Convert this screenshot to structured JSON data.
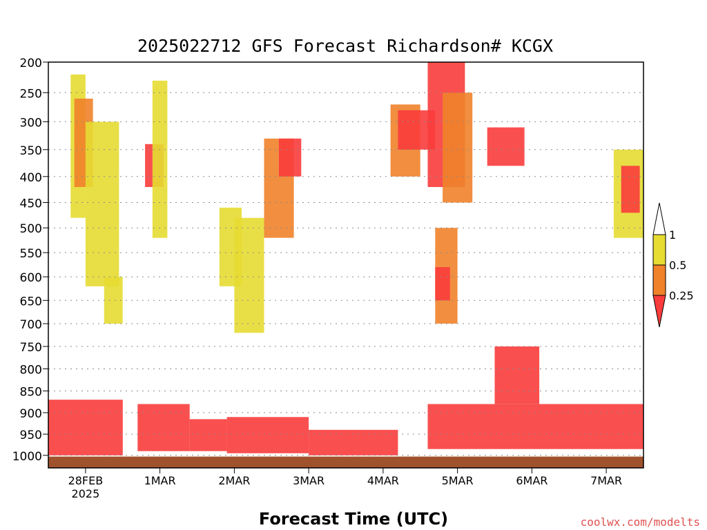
{
  "chart_data": {
    "type": "heatmap",
    "title": "2025022712 GFS Forecast Richardson# KCGX",
    "xlabel": "Forecast Time (UTC)",
    "ylabel": "",
    "credit": "coolwx.com/modelts",
    "y_axis": {
      "scale": "pressure (log-like, inverted)",
      "range_hPa": [
        1030,
        200
      ],
      "ticks": [
        "200",
        "250",
        "300",
        "350",
        "400",
        "450",
        "500",
        "550",
        "600",
        "650",
        "700",
        "750",
        "800",
        "850",
        "900",
        "950",
        "1000"
      ]
    },
    "x_axis": {
      "range_days_from_start": [
        0,
        8
      ],
      "ticks": [
        {
          "label": "28FEB",
          "sublabel": "2025",
          "day": 0.5
        },
        {
          "label": "1MAR",
          "day": 1.5
        },
        {
          "label": "2MAR",
          "day": 2.5
        },
        {
          "label": "3MAR",
          "day": 3.5
        },
        {
          "label": "4MAR",
          "day": 4.5
        },
        {
          "label": "5MAR",
          "day": 5.5
        },
        {
          "label": "6MAR",
          "day": 6.5
        },
        {
          "label": "7MAR",
          "day": 7.5
        }
      ]
    },
    "grid": {
      "horizontal": true,
      "style": "dotted"
    },
    "legend": {
      "placement": "right",
      "labels": [
        "1",
        "0.5",
        "0.25"
      ],
      "bins": [
        {
          "range": "> 1",
          "color": "#ffffff"
        },
        {
          "range": "0.5 - 1",
          "color": "#e6dc32"
        },
        {
          "range": "0.25 - 0.5",
          "color": "#f0822a"
        },
        {
          "range": "< 0.25",
          "color": "#fa3c3c"
        }
      ]
    },
    "colors": {
      "low": "#fa3c3c",
      "mid": "#f0822a",
      "high": "#e6dc32",
      "ground": "#a0522d"
    },
    "regions": [
      {
        "x": [
          0.0,
          8.0
        ],
        "p": [
          1003,
          1030
        ],
        "cls": "ground"
      },
      {
        "x": [
          0.0,
          1.0
        ],
        "p": [
          870,
          1000
        ],
        "cls": "low"
      },
      {
        "x": [
          1.2,
          1.9
        ],
        "p": [
          880,
          990
        ],
        "cls": "low"
      },
      {
        "x": [
          1.9,
          2.4
        ],
        "p": [
          915,
          990
        ],
        "cls": "low"
      },
      {
        "x": [
          2.4,
          3.5
        ],
        "p": [
          910,
          995
        ],
        "cls": "low"
      },
      {
        "x": [
          3.5,
          4.7
        ],
        "p": [
          940,
          1000
        ],
        "cls": "low"
      },
      {
        "x": [
          5.1,
          8.0
        ],
        "p": [
          880,
          985
        ],
        "cls": "low"
      },
      {
        "x": [
          0.3,
          0.5
        ],
        "p": [
          220,
          480
        ],
        "cls": "high"
      },
      {
        "x": [
          0.35,
          0.6
        ],
        "p": [
          260,
          420
        ],
        "cls": "mid"
      },
      {
        "x": [
          0.5,
          0.95
        ],
        "p": [
          300,
          620
        ],
        "cls": "high"
      },
      {
        "x": [
          0.75,
          1.0
        ],
        "p": [
          600,
          700
        ],
        "cls": "high"
      },
      {
        "x": [
          1.3,
          1.55
        ],
        "p": [
          340,
          420
        ],
        "cls": "low"
      },
      {
        "x": [
          1.4,
          1.6
        ],
        "p": [
          230,
          520
        ],
        "cls": "high"
      },
      {
        "x": [
          2.3,
          2.6
        ],
        "p": [
          460,
          620
        ],
        "cls": "high"
      },
      {
        "x": [
          2.5,
          2.9
        ],
        "p": [
          480,
          720
        ],
        "cls": "high"
      },
      {
        "x": [
          2.9,
          3.3
        ],
        "p": [
          330,
          520
        ],
        "cls": "mid"
      },
      {
        "x": [
          3.1,
          3.4
        ],
        "p": [
          330,
          400
        ],
        "cls": "low"
      },
      {
        "x": [
          4.6,
          5.0
        ],
        "p": [
          270,
          400
        ],
        "cls": "mid"
      },
      {
        "x": [
          4.7,
          5.2
        ],
        "p": [
          280,
          350
        ],
        "cls": "low"
      },
      {
        "x": [
          5.1,
          5.6
        ],
        "p": [
          200,
          420
        ],
        "cls": "low"
      },
      {
        "x": [
          5.3,
          5.7
        ],
        "p": [
          250,
          450
        ],
        "cls": "mid"
      },
      {
        "x": [
          5.2,
          5.5
        ],
        "p": [
          500,
          700
        ],
        "cls": "mid"
      },
      {
        "x": [
          5.2,
          5.4
        ],
        "p": [
          580,
          650
        ],
        "cls": "low"
      },
      {
        "x": [
          5.9,
          6.4
        ],
        "p": [
          310,
          380
        ],
        "cls": "low"
      },
      {
        "x": [
          6.0,
          6.6
        ],
        "p": [
          750,
          880
        ],
        "cls": "low"
      },
      {
        "x": [
          7.6,
          8.0
        ],
        "p": [
          350,
          520
        ],
        "cls": "high"
      },
      {
        "x": [
          7.7,
          7.95
        ],
        "p": [
          380,
          470
        ],
        "cls": "low"
      }
    ]
  }
}
